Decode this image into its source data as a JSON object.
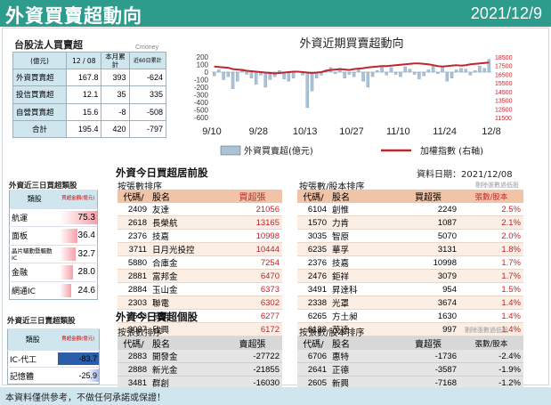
{
  "header": {
    "title": "外資買賣超動向",
    "date": "2021/12/9"
  },
  "legal": {
    "title": "台股法人買賣超",
    "source": "Cmoney",
    "unit": "(億元)",
    "col_date": "12 / 08",
    "col_month": "本月累計",
    "col_60": "近60日累計",
    "rows": [
      {
        "label": "外資買賣超",
        "day": "167.8",
        "month": "393",
        "d60": "-624"
      },
      {
        "label": "投信買賣超",
        "day": "12.1",
        "month": "35",
        "d60": "335"
      },
      {
        "label": "自營買賣超",
        "day": "15.6",
        "month": "-8",
        "d60": "-508"
      },
      {
        "label": "合計",
        "day": "195.4",
        "month": "420",
        "d60": "-797"
      }
    ]
  },
  "chart": {
    "title": "外資近期買賣超動向",
    "legend_bar": "外資買賣超(億元)",
    "legend_line": "加權指數 (右軸)",
    "bar_color": "#a9c3d9",
    "line_color": "#c0262d"
  },
  "chart_data": {
    "type": "bar",
    "title": "外資近期買賣超動向",
    "x_ticks": [
      "9/10",
      "9/28",
      "10/13",
      "10/27",
      "11/10",
      "11/24",
      "12/8"
    ],
    "y_left": {
      "min": -600,
      "max": 200,
      "ticks": [
        "200",
        "100",
        "0",
        "-100",
        "-200",
        "-300",
        "-400",
        "-500",
        "-600"
      ]
    },
    "y_right": {
      "min": 11500,
      "max": 18500,
      "ticks": [
        "18500",
        "17500",
        "16500",
        "15500",
        "14500",
        "13500",
        "12500",
        "11500"
      ]
    },
    "series": [
      {
        "name": "外資買賣超(億元)",
        "type": "bar",
        "values": [
          -50,
          30,
          -100,
          -60,
          -220,
          -120,
          40,
          -30,
          -80,
          -160,
          -40,
          -200,
          -100,
          -60,
          20,
          -90,
          -120,
          -80,
          10,
          -40,
          -470,
          -250,
          -80,
          -40,
          30,
          60,
          -20,
          50,
          -80,
          -30,
          -60,
          40,
          -120,
          -200,
          -60,
          20,
          80,
          -40,
          60,
          -30,
          -60,
          70,
          40,
          -30,
          -90,
          -50,
          30,
          80,
          -20,
          60,
          -120,
          -80,
          30,
          50,
          40,
          -40,
          20,
          80,
          50,
          168
        ]
      },
      {
        "name": "加權指數 (右軸)",
        "type": "line",
        "values": [
          17400,
          17350,
          17300,
          17250,
          17100,
          17050,
          17000,
          16900,
          16850,
          16800,
          16750,
          16700,
          16650,
          16600,
          16650,
          16700,
          16750,
          16800,
          16800,
          16750,
          16700,
          16650,
          16700,
          16750,
          16900,
          17000,
          17050,
          17100,
          17050,
          17000,
          17100,
          17150,
          17200,
          17300,
          17350,
          17400,
          17450,
          17450,
          17500,
          17550,
          17600,
          17650,
          17700,
          17750,
          17750,
          17700,
          17650,
          17550,
          17450,
          17400,
          17450,
          17500,
          17550,
          17500,
          17550,
          17650,
          17700,
          17750,
          17800,
          17850
        ]
      }
    ]
  },
  "sector_buy": {
    "title": "外資近三日買超類股",
    "col1": "類股",
    "col2": "買超金額(億元)",
    "rows": [
      {
        "name": "航運",
        "value": "75.3",
        "v": 75.3
      },
      {
        "name": "面板",
        "value": "36.4",
        "v": 36.4
      },
      {
        "name": "晶片驅動暨驅動IC",
        "value": "32.7",
        "v": 32.7
      },
      {
        "name": "金融",
        "value": "28.0",
        "v": 28.0
      },
      {
        "name": "網通IC",
        "value": "24.6",
        "v": 24.6
      }
    ]
  },
  "sector_sell": {
    "title": "外資近三日賣超類股",
    "col1": "類股",
    "col2": "賣超金額(億元)",
    "rows": [
      {
        "name": "IC-代工",
        "value": "-83.7",
        "v": 83.7
      },
      {
        "name": "記憶體",
        "value": "-25.9",
        "v": 25.9
      }
    ]
  },
  "buy_section": {
    "title": "外資今日買超居前股",
    "date_label": "資料日期：2021/12/08",
    "left_sub": "按張數排序",
    "right_sub": "按張數/股本排序",
    "note": "剔除張數過低股",
    "left_head": [
      "代碼/",
      "股名",
      "買超張"
    ],
    "right_head": [
      "代碼/",
      "股名",
      "買超張",
      "張數/股本"
    ],
    "left_rows": [
      [
        "2409",
        "友達",
        "21056"
      ],
      [
        "2618",
        "長榮航",
        "13165"
      ],
      [
        "2376",
        "技嘉",
        "10998"
      ],
      [
        "3711",
        "日月光投控",
        "10444"
      ],
      [
        "5880",
        "合庫金",
        "7254"
      ],
      [
        "2881",
        "富邦金",
        "6470"
      ],
      [
        "2884",
        "玉山金",
        "6373"
      ],
      [
        "2303",
        "聯電",
        "6302"
      ],
      [
        "2603",
        "長榮",
        "6277"
      ],
      [
        "3037",
        "欣興",
        "6172"
      ]
    ],
    "right_rows": [
      [
        "6104",
        "創惟",
        "2249",
        "2.5%"
      ],
      [
        "1570",
        "力肯",
        "1087",
        "2.1%"
      ],
      [
        "3035",
        "智原",
        "5070",
        "2.0%"
      ],
      [
        "6235",
        "華孚",
        "3131",
        "1.8%"
      ],
      [
        "2376",
        "技嘉",
        "10998",
        "1.7%"
      ],
      [
        "2476",
        "鉅祥",
        "3079",
        "1.7%"
      ],
      [
        "3491",
        "昇達科",
        "954",
        "1.5%"
      ],
      [
        "2338",
        "光罩",
        "3674",
        "1.4%"
      ],
      [
        "6265",
        "方土昶",
        "1630",
        "1.4%"
      ],
      [
        "6138",
        "茂達",
        "997",
        "1.4%"
      ]
    ]
  },
  "sell_section": {
    "title": "外資今日賣超個股",
    "left_sub": "按張數排序",
    "right_sub": "按張數/股本排序",
    "note": "剔除張數過低股",
    "left_head": [
      "代碼/",
      "股名",
      "賣超張"
    ],
    "right_head": [
      "代碼/",
      "股名",
      "賣超張",
      "張數/股本"
    ],
    "left_rows": [
      [
        "2883",
        "開發金",
        "-27722"
      ],
      [
        "2888",
        "新光金",
        "-21855"
      ],
      [
        "3481",
        "群創",
        "-16030"
      ]
    ],
    "right_rows": [
      [
        "6706",
        "惠特",
        "-1736",
        "-2.4%"
      ],
      [
        "2641",
        "正德",
        "-3587",
        "-1.9%"
      ],
      [
        "2605",
        "新興",
        "-7168",
        "-1.2%"
      ]
    ]
  },
  "footer": "本資料僅供參考，不做任何承諾或保證！"
}
